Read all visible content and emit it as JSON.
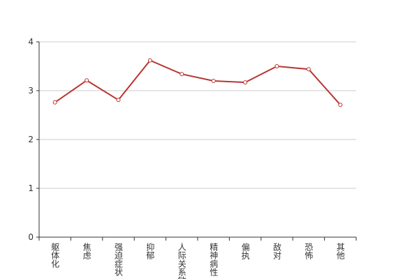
{
  "chart_data": {
    "type": "line",
    "categories": [
      "躯体化",
      "焦虑",
      "强迫症状",
      "抑郁",
      "人际关系敏感",
      "精神病性",
      "偏执",
      "敌对",
      "恐怖",
      "其他"
    ],
    "values": [
      2.76,
      3.21,
      2.81,
      3.62,
      3.34,
      3.2,
      3.17,
      3.5,
      3.44,
      2.71
    ],
    "color": "#b83530",
    "ylim": [
      0,
      4
    ],
    "yticks": [
      0,
      1,
      2,
      3,
      4
    ],
    "grid": true
  }
}
